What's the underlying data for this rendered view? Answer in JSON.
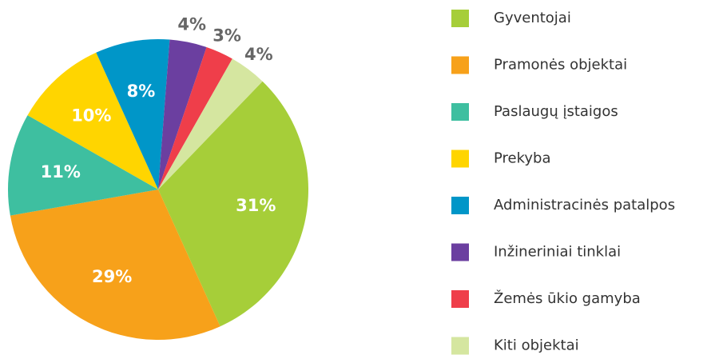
{
  "chart_data": {
    "type": "pie",
    "categories": [
      "Gyventojai",
      "Pramonės objektai",
      "Paslaugų įstaigos",
      "Prekyba",
      "Administracinės patalpos",
      "Inžineriniai tinklai",
      "Žemės ūkio gamyba",
      "Kiti objektai"
    ],
    "values": [
      31,
      29,
      11,
      10,
      8,
      4,
      3,
      4
    ],
    "value_labels": [
      "31%",
      "29%",
      "11%",
      "10%",
      "8%",
      "4%",
      "3%",
      "4%"
    ],
    "colors": [
      "#a6ce39",
      "#f7a11a",
      "#3ebfa0",
      "#ffd500",
      "#0096c8",
      "#6b3fa0",
      "#ef3e4a",
      "#d5e6a0"
    ],
    "legend": "right"
  }
}
